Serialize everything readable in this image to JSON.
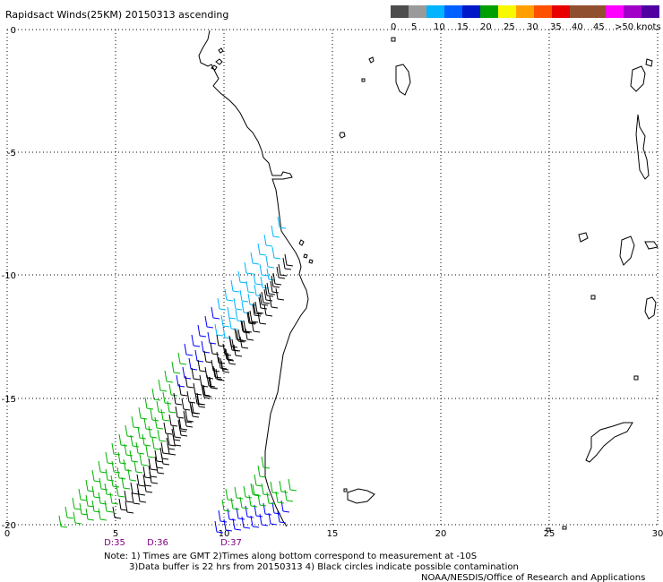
{
  "title": "Rapidsact Winds(25KM) 20150313 ascending",
  "legend": {
    "colors": [
      "#4d4d4d",
      "#9a9a9a",
      "#00b4ff",
      "#0060ff",
      "#0018c8",
      "#00a000",
      "#f8f800",
      "#ffa000",
      "#ff5000",
      "#e80000",
      "#905030",
      "#905030",
      "#ff00ff",
      "#a000c8",
      "#5000a0"
    ],
    "labels": [
      "0",
      "5",
      "10",
      "15",
      "20",
      "25",
      "30",
      "35",
      "40",
      "45",
      ">50 knots"
    ]
  },
  "x_axis": {
    "ticks": [
      "0",
      "5",
      "10",
      "15",
      "20",
      "25",
      "30"
    ]
  },
  "y_axis": {
    "ticks": [
      "0",
      "-5",
      "-10",
      "-15",
      "-20"
    ]
  },
  "time_labels": [
    "D:35",
    "D:36",
    "D:37"
  ],
  "notes": {
    "line1": "Note: 1) Times are GMT 2)Times along bottom correspond to measurement at -10S",
    "line2": "3)Data buffer is 22 hrs from 20150313 4) Black circles indicate possible contamination",
    "credit": "NOAA/NESDIS/Office of Research and Applications"
  },
  "wind_colors": {
    "calm_black": "#000000",
    "green": "#00b400",
    "blue": "#0000ff",
    "cyan": "#00b4ff"
  }
}
